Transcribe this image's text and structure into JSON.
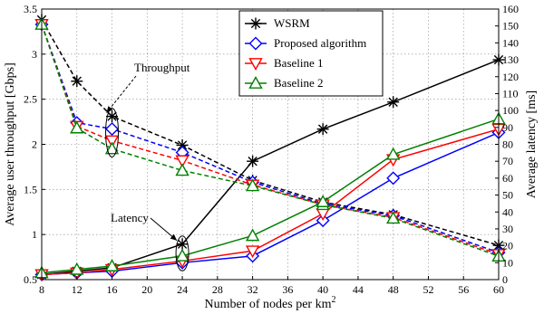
{
  "chart_data": {
    "type": "line",
    "xlabel": "Number of nodes per km",
    "xlabel_superscript": "2",
    "ylabel_left": "Average user throughput [Gbps]",
    "ylabel_right": "Average latency [ms]",
    "x_ticks": [
      8,
      12,
      16,
      20,
      24,
      28,
      32,
      36,
      40,
      44,
      48,
      52,
      56,
      60
    ],
    "y_left_ticks": [
      0.5,
      1,
      1.5,
      2,
      2.5,
      3,
      3.5
    ],
    "y_right_ticks": [
      0,
      10,
      20,
      30,
      40,
      50,
      60,
      70,
      80,
      90,
      100,
      110,
      120,
      130,
      140,
      150,
      160
    ],
    "xlim": [
      8,
      60
    ],
    "ylim_left": [
      0.5,
      3.5
    ],
    "ylim_right": [
      0,
      160
    ],
    "grid": true,
    "legend_position": "top-center",
    "x": [
      8,
      12,
      16,
      24,
      32,
      40,
      48,
      60
    ],
    "annotations": [
      {
        "text": "Throughput",
        "target": "throughput"
      },
      {
        "text": "Latency",
        "target": "latency"
      }
    ],
    "series": [
      {
        "name": "WSRM",
        "color": "#000000",
        "marker": "star",
        "throughput": [
          3.38,
          2.7,
          2.31,
          1.99,
          1.6,
          1.36,
          1.22,
          0.88
        ],
        "latency": [
          3,
          5,
          7,
          21,
          70,
          89,
          105,
          130
        ]
      },
      {
        "name": "Proposed algorithm",
        "color": "#0000ff",
        "marker": "diamond",
        "throughput": [
          3.33,
          2.24,
          2.17,
          1.91,
          1.58,
          1.34,
          1.21,
          0.8
        ],
        "latency": [
          3,
          4,
          5,
          10,
          14,
          35,
          60,
          87
        ]
      },
      {
        "name": "Baseline 1",
        "color": "#ff0000",
        "marker": "triangle-down",
        "throughput": [
          3.33,
          2.2,
          2.04,
          1.82,
          1.55,
          1.33,
          1.19,
          0.78
        ],
        "latency": [
          3,
          4,
          6,
          11,
          17,
          39,
          71,
          89
        ]
      },
      {
        "name": "Baseline 2",
        "color": "#008000",
        "marker": "triangle-up",
        "throughput": [
          3.33,
          2.18,
          1.95,
          1.71,
          1.54,
          1.33,
          1.18,
          0.76
        ],
        "latency": [
          4,
          6,
          8,
          14,
          26,
          46,
          74,
          95
        ]
      }
    ]
  }
}
